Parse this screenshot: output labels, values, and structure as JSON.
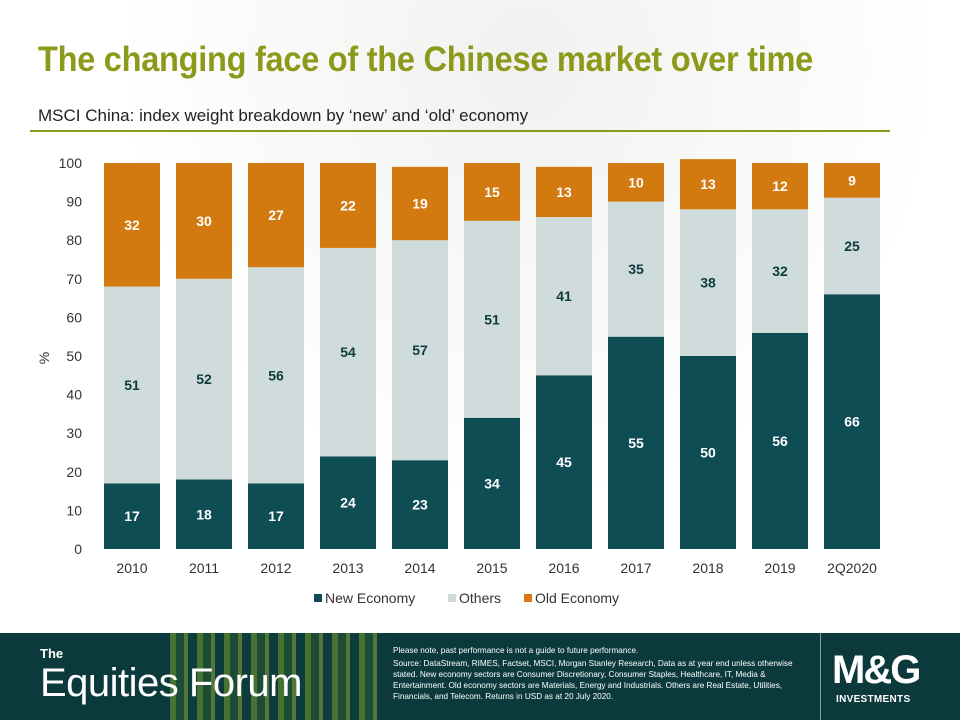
{
  "page": {
    "title": "The changing face of the Chinese market over time",
    "subtitle": "MSCI China: index weight breakdown by ‘new’ and ‘old’ economy"
  },
  "chart_data": {
    "type": "bar",
    "stacked": true,
    "categories": [
      "2010",
      "2011",
      "2012",
      "2013",
      "2014",
      "2015",
      "2016",
      "2017",
      "2018",
      "2019",
      "2Q2020"
    ],
    "series": [
      {
        "name": "New Economy",
        "color": "#0e4d54",
        "label_color": "#ffffff",
        "values": [
          17,
          18,
          17,
          24,
          23,
          34,
          45,
          55,
          50,
          56,
          66
        ]
      },
      {
        "name": "Others",
        "color": "#cfdcdb",
        "label_color": "#0e3b40",
        "values": [
          51,
          52,
          56,
          54,
          57,
          51,
          41,
          35,
          38,
          32,
          25
        ]
      },
      {
        "name": "Old Economy",
        "color": "#d27a10",
        "label_color": "#ffffff",
        "values": [
          32,
          30,
          27,
          22,
          19,
          15,
          13,
          10,
          13,
          12,
          9
        ]
      }
    ],
    "ylabel": "%",
    "xlabel": "",
    "ylim": [
      0,
      100
    ],
    "yticks": [
      0,
      10,
      20,
      30,
      40,
      50,
      60,
      70,
      80,
      90,
      100
    ],
    "grid": false,
    "legend_position": "bottom"
  },
  "footer": {
    "brand_small": "The",
    "brand_big": "Equities Forum",
    "disclaimer_line1": "Please note, past performance is not a guide to future performance.",
    "disclaimer_line2": "Source: DataStream, RIMES, Factset, MSCI, Morgan Stanley Research, Data as at year end unless otherwise stated. New economy sectors are Consumer Discretionary, Consumer Staples, Healthcare, IT, Media & Entertainment. Old economy sectors are Materials, Energy and Industrials. Others are Real Estate, Utilities, Financials, and Telecom. Returns in USD as at 20 July 2020.",
    "logo_text": "M&G",
    "logo_subtext": "INVESTMENTS"
  }
}
